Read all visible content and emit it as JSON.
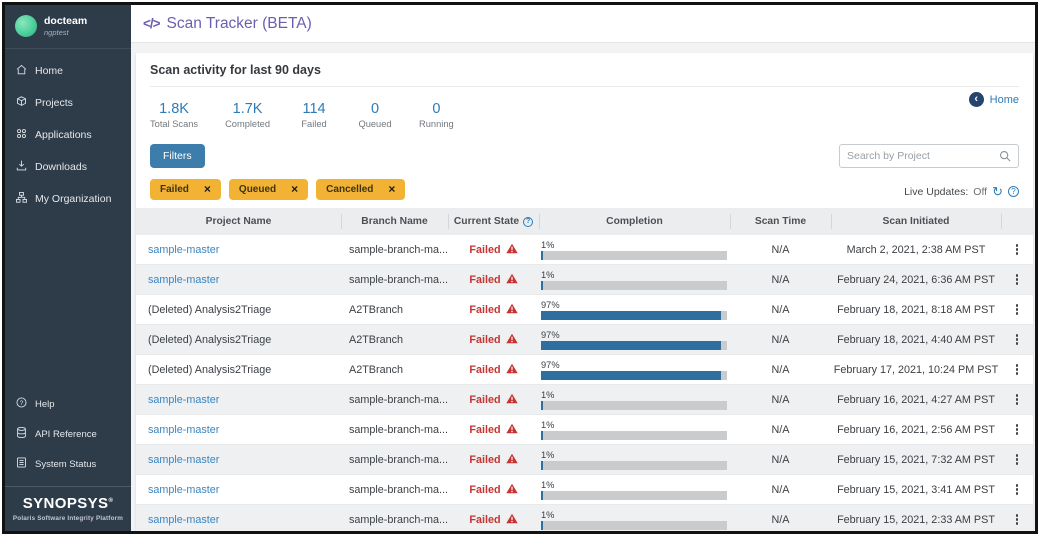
{
  "topbar": {
    "icon": "</>",
    "title": "Scan Tracker (BETA)"
  },
  "sidebar": {
    "user": {
      "name": "docteam",
      "subtitle": "ngptest"
    },
    "items": [
      {
        "label": "Home",
        "icon": "home-icon"
      },
      {
        "label": "Projects",
        "icon": "projects-icon"
      },
      {
        "label": "Applications",
        "icon": "applications-icon"
      },
      {
        "label": "Downloads",
        "icon": "downloads-icon"
      },
      {
        "label": "My Organization",
        "icon": "organization-icon"
      }
    ],
    "footer_items": [
      {
        "label": "Help",
        "icon": "help-icon"
      },
      {
        "label": "API Reference",
        "icon": "api-reference-icon"
      },
      {
        "label": "System Status",
        "icon": "system-status-icon"
      }
    ],
    "logo": "SYNOPSYS",
    "logo_mark": "®",
    "tagline": "Polaris Software Integrity Platform"
  },
  "page": {
    "heading": "Scan activity for last 90 days",
    "home_link": "Home",
    "stats": [
      {
        "value": "1.8K",
        "label": "Total Scans"
      },
      {
        "value": "1.7K",
        "label": "Completed"
      },
      {
        "value": "114",
        "label": "Failed"
      },
      {
        "value": "0",
        "label": "Queued"
      },
      {
        "value": "0",
        "label": "Running"
      }
    ],
    "filters_button": "Filters",
    "filter_chips": [
      "Failed",
      "Queued",
      "Cancelled"
    ],
    "search_placeholder": "Search by Project",
    "live_updates_label": "Live Updates:",
    "live_updates_value": "Off"
  },
  "table": {
    "columns": [
      "Project Name",
      "Branch Name",
      "Current State",
      "Completion",
      "Scan Time",
      "Scan Initiated"
    ],
    "rows": [
      {
        "project": "sample-master",
        "project_is_link": true,
        "branch": "sample-branch-ma...",
        "state": "Failed",
        "completion_label": "1%",
        "completion_pct": 1,
        "scan_time": "N/A",
        "initiated": "March 2, 2021, 2:38 AM PST"
      },
      {
        "project": "sample-master",
        "project_is_link": true,
        "branch": "sample-branch-ma...",
        "state": "Failed",
        "completion_label": "1%",
        "completion_pct": 1,
        "scan_time": "N/A",
        "initiated": "February 24, 2021, 6:36 AM PST"
      },
      {
        "project": "(Deleted) Analysis2Triage",
        "project_is_link": false,
        "branch": "A2TBranch",
        "state": "Failed",
        "completion_label": "97%",
        "completion_pct": 97,
        "scan_time": "N/A",
        "initiated": "February 18, 2021, 8:18 AM PST"
      },
      {
        "project": "(Deleted) Analysis2Triage",
        "project_is_link": false,
        "branch": "A2TBranch",
        "state": "Failed",
        "completion_label": "97%",
        "completion_pct": 97,
        "scan_time": "N/A",
        "initiated": "February 18, 2021, 4:40 AM PST"
      },
      {
        "project": "(Deleted) Analysis2Triage",
        "project_is_link": false,
        "branch": "A2TBranch",
        "state": "Failed",
        "completion_label": "97%",
        "completion_pct": 97,
        "scan_time": "N/A",
        "initiated": "February 17, 2021, 10:24 PM PST"
      },
      {
        "project": "sample-master",
        "project_is_link": true,
        "branch": "sample-branch-ma...",
        "state": "Failed",
        "completion_label": "1%",
        "completion_pct": 1,
        "scan_time": "N/A",
        "initiated": "February 16, 2021, 4:27 AM PST"
      },
      {
        "project": "sample-master",
        "project_is_link": true,
        "branch": "sample-branch-ma...",
        "state": "Failed",
        "completion_label": "1%",
        "completion_pct": 1,
        "scan_time": "N/A",
        "initiated": "February 16, 2021, 2:56 AM PST"
      },
      {
        "project": "sample-master",
        "project_is_link": true,
        "branch": "sample-branch-ma...",
        "state": "Failed",
        "completion_label": "1%",
        "completion_pct": 1,
        "scan_time": "N/A",
        "initiated": "February 15, 2021, 7:32 AM PST"
      },
      {
        "project": "sample-master",
        "project_is_link": true,
        "branch": "sample-branch-ma...",
        "state": "Failed",
        "completion_label": "1%",
        "completion_pct": 1,
        "scan_time": "N/A",
        "initiated": "February 15, 2021, 3:41 AM PST"
      },
      {
        "project": "sample-master",
        "project_is_link": true,
        "branch": "sample-branch-ma...",
        "state": "Failed",
        "completion_label": "1%",
        "completion_pct": 1,
        "scan_time": "N/A",
        "initiated": "February 15, 2021, 2:33 AM PST"
      }
    ],
    "partial_row_completion_label": "1%"
  },
  "colors": {
    "sidebar_bg": "#2e3b49",
    "title_purple": "#6c5fb0",
    "accent_blue": "#2c7bb8",
    "link_blue": "#3c85c0",
    "bar_blue": "#2f6f9f",
    "filters_button_blue": "#3c7dab",
    "chip_amber": "#f2b233",
    "failed_red": "#c43431",
    "header_gray": "#ecedef",
    "alt_row_gray": "#eef0f2"
  }
}
